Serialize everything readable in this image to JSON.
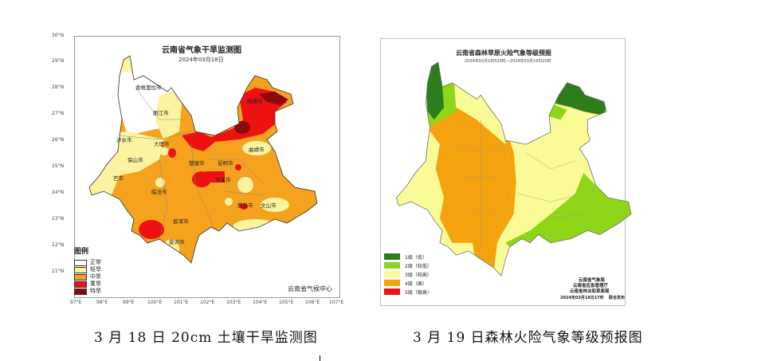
{
  "drought_map": {
    "title": "云南省气象干旱监测图",
    "date": "2024年03月18日",
    "lat_ticks": [
      "30°N",
      "29°N",
      "28°N",
      "27°N",
      "26°N",
      "25°N",
      "24°N",
      "23°N",
      "22°N",
      "21°N"
    ],
    "lon_ticks": [
      "97°E",
      "98°E",
      "99°E",
      "100°E",
      "101°E",
      "102°E",
      "103°E",
      "104°E",
      "105°E",
      "106°E",
      "107°E"
    ],
    "cities": [
      "香格里拉市",
      "丽江市",
      "泸水市",
      "大理市",
      "保山市",
      "楚雄市",
      "昆明市",
      "曲靖市",
      "芒市",
      "玉溪市",
      "临沧市",
      "蒙自市",
      "文山市",
      "普洱市",
      "景洪市",
      "昭通市"
    ],
    "legend_title": "图例",
    "legend": [
      {
        "label": "正常",
        "color": "#ffffff"
      },
      {
        "label": "轻旱",
        "color": "#fbf3a0"
      },
      {
        "label": "中旱",
        "color": "#f5a21e"
      },
      {
        "label": "重旱",
        "color": "#ee1111"
      },
      {
        "label": "特旱",
        "color": "#8b0a0a"
      }
    ],
    "issuer": "云南省气候中心"
  },
  "fire_map": {
    "title": "云南省森林草原火险气象等级预报",
    "period": "2024年03月18日20时—2024年03月19日20时",
    "legend": [
      {
        "label": "1级（低）",
        "color": "#2e7d1c"
      },
      {
        "label": "2级（较低）",
        "color": "#8fd61a"
      },
      {
        "label": "3级（较高）",
        "color": "#fafa96"
      },
      {
        "label": "4级（高）",
        "color": "#f5a20f"
      },
      {
        "label": "5级（极高）",
        "color": "#ee1111"
      }
    ],
    "issuers": [
      "云南省气象局",
      "云南省应急管理厅",
      "云南省林业和草原局"
    ],
    "issue_time": "2024年03月18日17时",
    "joint_release": "联合发布"
  },
  "captions": {
    "left": "3 月 18 日 20cm 土壤干旱监测图",
    "right": "3 月 19 日森林火险气象等级预报图"
  }
}
